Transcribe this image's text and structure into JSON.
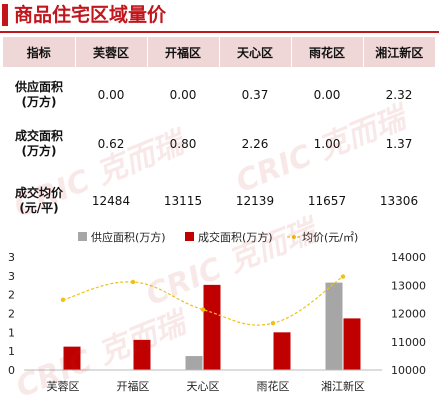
{
  "title": "商品住宅区域量价",
  "table": {
    "headers": [
      "指标",
      "芙蓉区",
      "开福区",
      "天心区",
      "雨花区",
      "湘江新区"
    ],
    "rows": [
      {
        "label_lines": [
          "供应面积",
          "(万方)"
        ],
        "values": [
          "0.00",
          "0.00",
          "0.37",
          "0.00",
          "2.32"
        ]
      },
      {
        "label_lines": [
          "成交面积",
          "(万方)"
        ],
        "values": [
          "0.62",
          "0.80",
          "2.26",
          "1.00",
          "1.37"
        ]
      },
      {
        "label_lines": [
          "成交均价",
          "(元/平)"
        ],
        "values": [
          "12484",
          "13115",
          "12139",
          "11657",
          "13306"
        ]
      }
    ]
  },
  "watermark": "CRIC 克而瑞",
  "chart_data": {
    "type": "bar",
    "categories": [
      "芙蓉区",
      "开福区",
      "天心区",
      "雨花区",
      "湘江新区"
    ],
    "series": [
      {
        "name": "供应面积(万方)",
        "kind": "bar",
        "axis": "left",
        "color": "#a6a6a6",
        "values": [
          0.0,
          0.0,
          0.37,
          0.0,
          2.32
        ]
      },
      {
        "name": "成交面积(万方)",
        "kind": "bar",
        "axis": "left",
        "color": "#c00000",
        "values": [
          0.62,
          0.8,
          2.26,
          1.0,
          1.37
        ]
      },
      {
        "name": "均价(元/㎡)",
        "kind": "line",
        "style": "dashed-smooth",
        "axis": "right",
        "color": "#f2c10f",
        "values": [
          12484,
          13115,
          12139,
          11657,
          13306
        ]
      }
    ],
    "y_left": {
      "range": [
        0,
        3
      ],
      "tick_labels": [
        "0",
        "1",
        "1",
        "2",
        "2",
        "3",
        "3"
      ],
      "tick_values": [
        0,
        0.5,
        1,
        1.5,
        2,
        2.5,
        3
      ]
    },
    "y_right": {
      "range": [
        10000,
        14000
      ],
      "tick_labels": [
        "10000",
        "11000",
        "12000",
        "13000",
        "14000"
      ],
      "tick_values": [
        10000,
        11000,
        12000,
        13000,
        14000
      ]
    },
    "grid": false,
    "legend": "top"
  }
}
